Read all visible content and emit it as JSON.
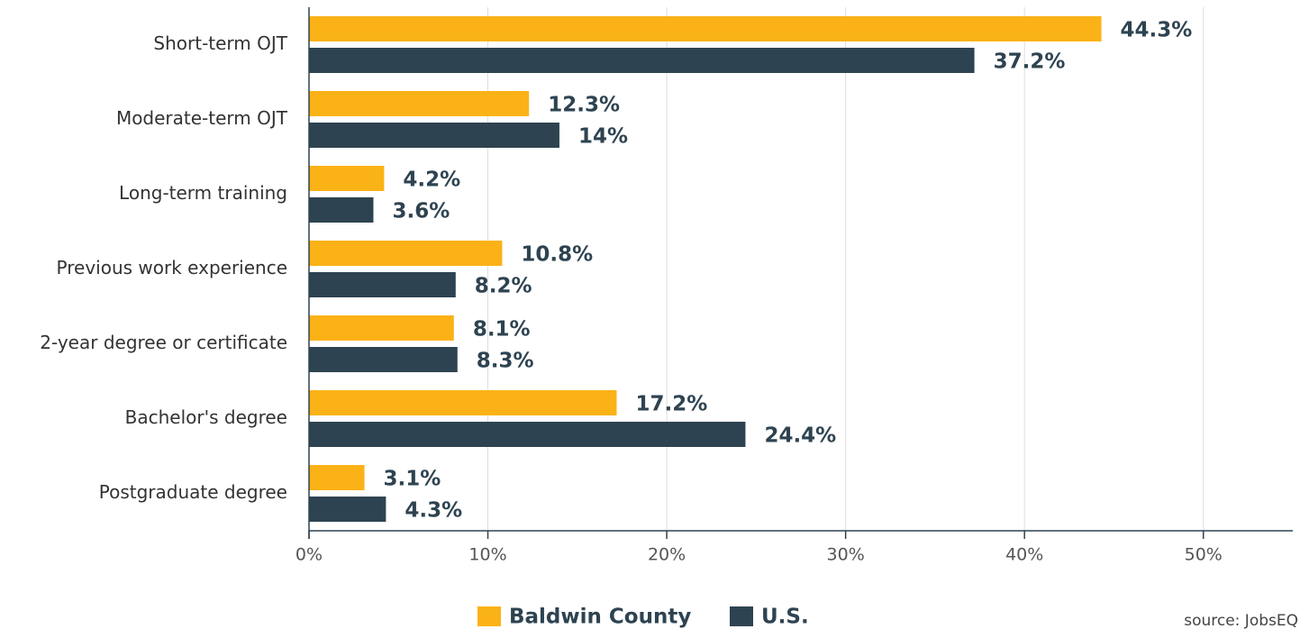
{
  "chart_data": {
    "type": "hbar",
    "categories": [
      "Short-term OJT",
      "Moderate-term OJT",
      "Long-term training",
      "Previous work experience",
      "2-year degree or certificate",
      "Bachelor's degree",
      "Postgraduate degree"
    ],
    "series": [
      {
        "name": "Baldwin County",
        "color": "#fbb217",
        "values": [
          44.3,
          12.3,
          4.2,
          10.8,
          8.1,
          17.2,
          3.1
        ],
        "value_labels": [
          "44.3%",
          "12.3%",
          "4.2%",
          "10.8%",
          "8.1%",
          "17.2%",
          "3.1%"
        ]
      },
      {
        "name": "U.S.",
        "color": "#2e4351",
        "values": [
          37.2,
          14,
          3.6,
          8.2,
          8.3,
          24.4,
          4.3
        ],
        "value_labels": [
          "37.2%",
          "14%",
          "3.6%",
          "8.2%",
          "8.3%",
          "24.4%",
          "4.3%"
        ]
      }
    ],
    "xlim": [
      0,
      55
    ],
    "xticks": [
      {
        "value": 0,
        "label": "0%"
      },
      {
        "value": 10,
        "label": "10%"
      },
      {
        "value": 20,
        "label": "20%"
      },
      {
        "value": 30,
        "label": "30%"
      },
      {
        "value": 40,
        "label": "40%"
      },
      {
        "value": 50,
        "label": "50%"
      }
    ],
    "grid": true,
    "source": "source: JobsEQ"
  }
}
